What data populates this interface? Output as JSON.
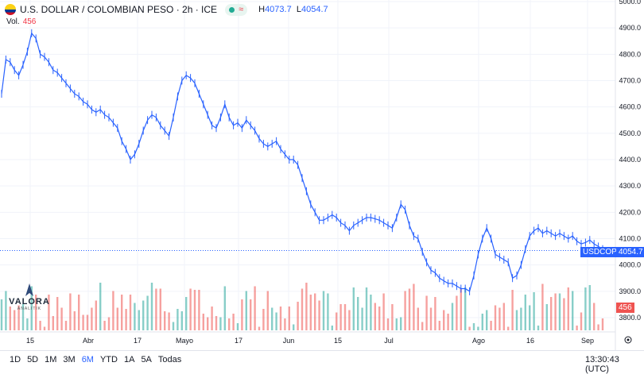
{
  "header": {
    "title": "U.S. DOLLAR / COLOMBIAN PESO · 2h · ICE",
    "high_label": "H",
    "high_value": "4073.7",
    "low_label": "L",
    "low_value": "4054.7",
    "wave_glyph": "≈"
  },
  "volume": {
    "label": "Vol.",
    "value": "456"
  },
  "logo": {
    "name": "VALORA",
    "sub": "ANALITIK"
  },
  "price_tag": {
    "symbol": "USDCOP",
    "price": "4054.7"
  },
  "volume_tag": "456",
  "bottom_bar": {
    "ranges": [
      "1D",
      "5D",
      "1M",
      "3M",
      "6M",
      "YTD",
      "1A",
      "5A",
      "Todas"
    ],
    "active_range": "6M",
    "clock": "13:30:43 (UTC)"
  },
  "colors": {
    "line": "#2962ff",
    "up": "#26a69a",
    "down": "#ef5350",
    "text": "#131722"
  },
  "chart_data": {
    "type": "line",
    "title": "U.S. DOLLAR / COLOMBIAN PESO · 2h · ICE",
    "xlabel": "",
    "ylabel": "",
    "ylim": [
      3750,
      5000
    ],
    "y_ticks": [
      "5000.0",
      "4900.0",
      "4800.0",
      "4700.0",
      "4600.0",
      "4500.0",
      "4400.0",
      "4300.0",
      "4200.0",
      "4100.0",
      "4000.0",
      "3900.0",
      "3800.0"
    ],
    "x_ticks": [
      "15",
      "Abr",
      "17",
      "Mayo",
      "17",
      "Jun",
      "15",
      "Jul",
      "Ago",
      "16",
      "Sep"
    ],
    "series": [
      {
        "name": "USDCOP",
        "values": [
          4650,
          4780,
          4770,
          4740,
          4720,
          4760,
          4810,
          4880,
          4860,
          4800,
          4790,
          4770,
          4740,
          4730,
          4710,
          4690,
          4670,
          4650,
          4640,
          4620,
          4610,
          4590,
          4580,
          4590,
          4570,
          4560,
          4540,
          4520,
          4470,
          4440,
          4400,
          4420,
          4460,
          4510,
          4550,
          4570,
          4560,
          4530,
          4510,
          4490,
          4560,
          4640,
          4700,
          4720,
          4710,
          4690,
          4650,
          4610,
          4570,
          4530,
          4520,
          4560,
          4610,
          4560,
          4530,
          4540,
          4520,
          4550,
          4530,
          4510,
          4480,
          4460,
          4450,
          4460,
          4470,
          4440,
          4420,
          4400,
          4400,
          4380,
          4330,
          4280,
          4230,
          4200,
          4170,
          4170,
          4180,
          4190,
          4180,
          4160,
          4150,
          4130,
          4150,
          4160,
          4170,
          4180,
          4180,
          4175,
          4170,
          4160,
          4150,
          4140,
          4180,
          4230,
          4210,
          4150,
          4110,
          4100,
          4050,
          4010,
          3980,
          3970,
          3950,
          3940,
          3930,
          3930,
          3920,
          3910,
          3910,
          3900,
          3960,
          4040,
          4100,
          4140,
          4100,
          4040,
          4030,
          4020,
          4010,
          3950,
          3960,
          4000,
          4060,
          4110,
          4130,
          4140,
          4120,
          4130,
          4120,
          4110,
          4120,
          4110,
          4100,
          4110,
          4090,
          4080,
          4085,
          4095,
          4080,
          4070,
          4060
        ],
        "volumes": [
          26,
          33,
          20,
          17,
          21,
          22,
          10,
          37,
          30,
          8,
          3,
          30,
          12,
          28,
          19,
          8,
          31,
          16,
          30,
          13,
          13,
          19,
          25,
          40,
          8,
          11,
          33,
          19,
          30,
          18,
          30,
          23,
          17,
          25,
          29,
          40,
          35,
          35,
          16,
          15,
          7,
          18,
          16,
          28,
          35,
          34,
          34,
          14,
          11,
          20,
          12,
          11,
          37,
          10,
          14,
          6,
          26,
          33,
          26,
          37,
          3,
          18,
          33,
          19,
          15,
          20,
          10,
          20,
          5,
          24,
          35,
          40,
          30,
          31,
          25,
          33,
          31,
          4,
          15,
          22,
          22,
          17,
          36,
          28,
          19,
          36,
          30,
          23,
          20,
          31,
          10,
          22,
          10,
          11,
          33,
          35,
          39,
          19,
          7,
          29,
          19,
          28,
          8,
          17,
          14,
          23,
          29,
          35,
          36,
          3,
          6,
          3,
          14,
          17,
          8,
          21,
          19,
          23,
          3,
          34,
          17,
          19,
          30,
          21,
          32,
          4,
          39,
          22,
          28,
          31,
          31,
          27,
          36,
          33,
          4,
          15,
          36,
          38,
          23,
          5,
          10
        ]
      }
    ]
  }
}
